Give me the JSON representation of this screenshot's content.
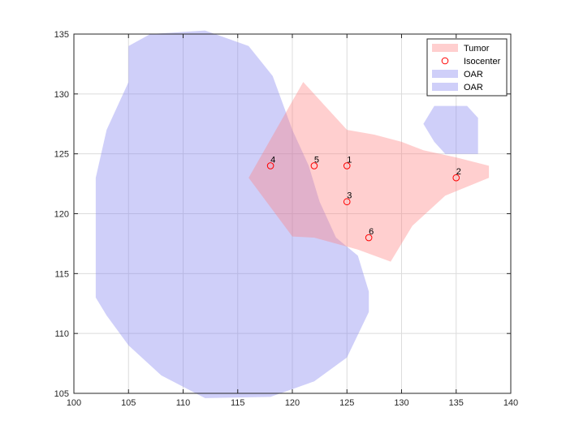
{
  "chart_data": {
    "type": "scatter",
    "title": "",
    "xlabel": "",
    "ylabel": "",
    "xlim": [
      100,
      140
    ],
    "ylim": [
      105,
      135
    ],
    "xticks": [
      100,
      105,
      110,
      115,
      120,
      125,
      130,
      135,
      140
    ],
    "yticks": [
      105,
      110,
      115,
      120,
      125,
      130,
      135
    ],
    "grid": true,
    "legend_position": "top-right",
    "legend": [
      "Tumor",
      "Isocenter",
      "OAR",
      "OAR"
    ],
    "polygons": [
      {
        "name": "OAR",
        "color": "#8080f0",
        "points": [
          [
            105,
            134
          ],
          [
            107,
            135
          ],
          [
            112,
            135.3
          ],
          [
            116,
            134
          ],
          [
            118.2,
            131.5
          ],
          [
            120,
            127
          ],
          [
            121.5,
            124
          ],
          [
            122.5,
            121
          ],
          [
            124,
            118
          ],
          [
            126,
            116.5
          ],
          [
            127,
            113.5
          ],
          [
            127,
            111.8
          ],
          [
            125,
            108
          ],
          [
            122,
            106
          ],
          [
            118,
            104.7
          ],
          [
            112,
            104.6
          ],
          [
            108,
            106.5
          ],
          [
            105,
            109
          ],
          [
            103,
            111.5
          ],
          [
            102,
            113
          ],
          [
            102,
            123
          ],
          [
            103,
            127
          ],
          [
            105,
            131
          ]
        ]
      },
      {
        "name": "Tumor",
        "color": "#ff8080",
        "points": [
          [
            116,
            123
          ],
          [
            121,
            131
          ],
          [
            123,
            129
          ],
          [
            125,
            127
          ],
          [
            127.5,
            126.6
          ],
          [
            130,
            126
          ],
          [
            132,
            125.3
          ],
          [
            135,
            124.7
          ],
          [
            138,
            124
          ],
          [
            138,
            123
          ],
          [
            134,
            121.5
          ],
          [
            131,
            119
          ],
          [
            129,
            116
          ],
          [
            126,
            117
          ],
          [
            122,
            118
          ],
          [
            120,
            118.1
          ]
        ]
      },
      {
        "name": "OAR",
        "color": "#8080f0",
        "points": [
          [
            133,
            129
          ],
          [
            136,
            129
          ],
          [
            137,
            128
          ],
          [
            137,
            125
          ],
          [
            134,
            125
          ],
          [
            133,
            126
          ],
          [
            132,
            127.5
          ]
        ]
      }
    ],
    "isocenters": {
      "name": "Isocenter",
      "labels": [
        "1",
        "2",
        "3",
        "4",
        "5",
        "6"
      ],
      "x": [
        125,
        135,
        125,
        118,
        122,
        127
      ],
      "y": [
        124,
        123,
        121,
        124,
        124,
        118
      ]
    }
  }
}
